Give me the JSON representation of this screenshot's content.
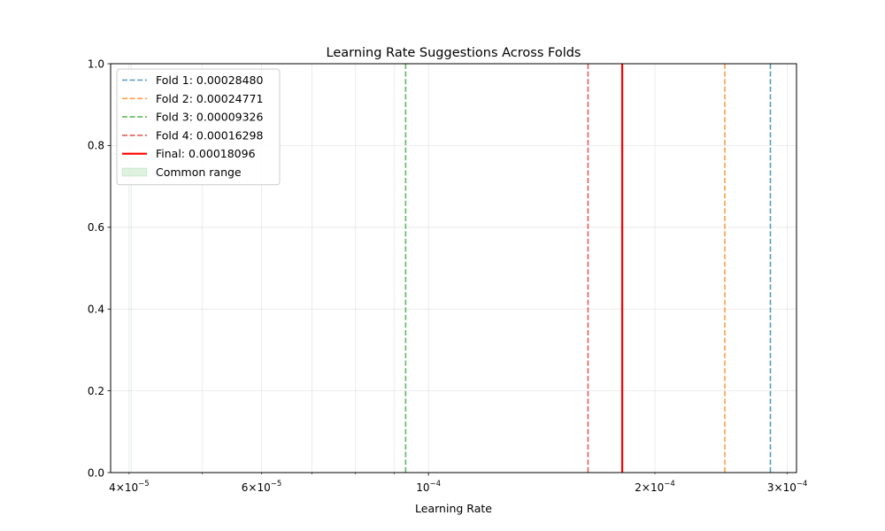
{
  "chart_data": {
    "type": "line",
    "title": "Learning Rate Suggestions Across Folds",
    "xlabel": "Learning Rate",
    "ylabel": "",
    "xscale": "log",
    "xlim": [
      3.78e-05,
      0.0003085
    ],
    "ylim": [
      0,
      1
    ],
    "grid": true,
    "legend_position": "upper-left",
    "y_ticks": [
      {
        "value": 0.0,
        "label": "0.0"
      },
      {
        "value": 0.2,
        "label": "0.2"
      },
      {
        "value": 0.4,
        "label": "0.4"
      },
      {
        "value": 0.6,
        "label": "0.6"
      },
      {
        "value": 0.8,
        "label": "0.8"
      },
      {
        "value": 1.0,
        "label": "1.0"
      }
    ],
    "x_major_ticks": [
      {
        "value": 0.0001,
        "base": "10",
        "exp": "−4"
      }
    ],
    "x_minor_ticks": [
      {
        "value": 4e-05,
        "coef": "4",
        "base": "10",
        "exp": "−5",
        "labeled": true
      },
      {
        "value": 5e-05,
        "labeled": false
      },
      {
        "value": 6e-05,
        "coef": "6",
        "base": "10",
        "exp": "−5",
        "labeled": true
      },
      {
        "value": 7e-05,
        "labeled": false
      },
      {
        "value": 8e-05,
        "labeled": false
      },
      {
        "value": 9e-05,
        "labeled": false
      },
      {
        "value": 0.0002,
        "coef": "2",
        "base": "10",
        "exp": "−4",
        "labeled": true
      },
      {
        "value": 0.0003,
        "coef": "3",
        "base": "10",
        "exp": "−4",
        "labeled": true
      }
    ],
    "series": [
      {
        "name": "Fold 1: 0.00028480",
        "x": 0.0002848,
        "color": "#1f77b4",
        "style": "dashed"
      },
      {
        "name": "Fold 2: 0.00024771",
        "x": 0.00024771,
        "color": "#ff7f0e",
        "style": "dashed"
      },
      {
        "name": "Fold 3: 0.00009326",
        "x": 9.326e-05,
        "color": "#2ca02c",
        "style": "dashed"
      },
      {
        "name": "Fold 4: 0.00016298",
        "x": 0.00016298,
        "color": "#d62728",
        "style": "dashed"
      },
      {
        "name": "Final: 0.00018096",
        "x": 0.00018096,
        "color": "#ff0000",
        "style": "solid"
      }
    ],
    "common_range": {
      "name": "Common range",
      "color": "#2ca02c",
      "x": [
        4.02e-05,
        4.02e-05
      ]
    }
  }
}
